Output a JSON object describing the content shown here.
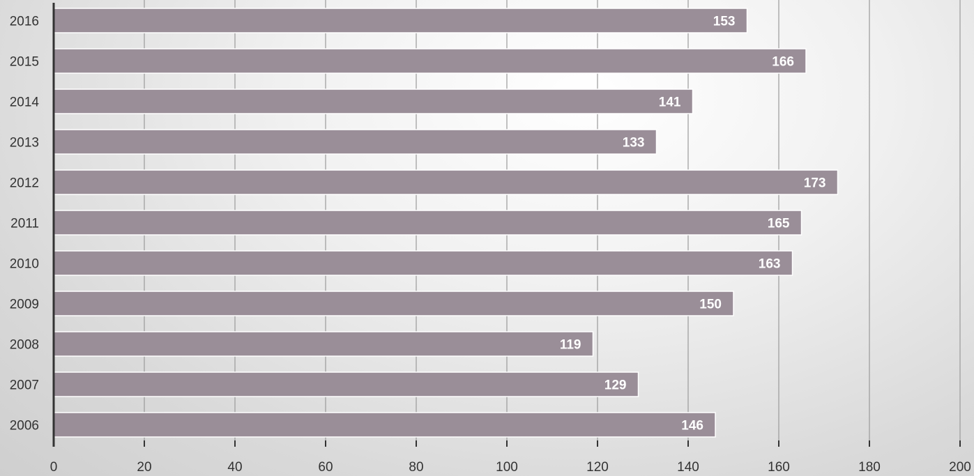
{
  "chart_data": {
    "type": "bar",
    "orientation": "horizontal",
    "categories": [
      "2016",
      "2015",
      "2014",
      "2013",
      "2012",
      "2011",
      "2010",
      "2009",
      "2008",
      "2007",
      "2006"
    ],
    "values": [
      153,
      166,
      141,
      133,
      173,
      165,
      163,
      150,
      119,
      129,
      146
    ],
    "data_labels": [
      "153",
      "166",
      "141",
      "133",
      "173",
      "165",
      "163",
      "150",
      "119",
      "129",
      "146"
    ],
    "x_ticks": [
      "0",
      "20",
      "40",
      "60",
      "80",
      "100",
      "120",
      "140",
      "160",
      "180",
      "200"
    ],
    "xlim": [
      0,
      200
    ],
    "title": "",
    "xlabel": "",
    "ylabel": "",
    "grid": true,
    "legend": "none",
    "bar_color": "#9a8e98",
    "gridline_color": "#9a9a9a",
    "axis_color": "#333333"
  }
}
